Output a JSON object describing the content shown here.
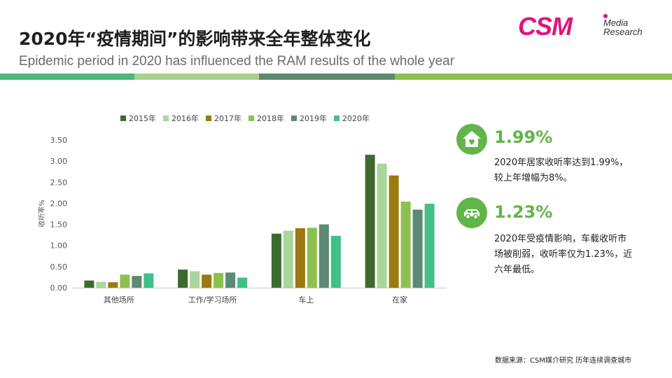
{
  "header": {
    "title": "2020年“疫情期间”的影响带来全年整体变化",
    "subtitle": "Epidemic period in 2020 has influenced the RAM results of the whole year"
  },
  "logo": {
    "main": "CSM",
    "line1": "Media",
    "line2": "Research"
  },
  "stripe_colors": [
    "#4fb77a",
    "#a9d08e",
    "#5d8a6e",
    "#8cc152"
  ],
  "chart_data": {
    "type": "bar",
    "ylabel": "收听率%",
    "ylim": [
      0,
      3.5
    ],
    "yticks": [
      "0.00",
      "0.50",
      "1.00",
      "1.50",
      "2.00",
      "2.50",
      "3.00",
      "3.50"
    ],
    "categories": [
      "其他场所",
      "工作/学习场所",
      "车上",
      "在家"
    ],
    "series": [
      {
        "name": "2015年",
        "color": "#3d6b2e",
        "values": [
          0.17,
          0.43,
          1.28,
          3.15
        ]
      },
      {
        "name": "2016年",
        "color": "#a9d79a",
        "values": [
          0.14,
          0.39,
          1.35,
          2.94
        ]
      },
      {
        "name": "2017年",
        "color": "#9c7a12",
        "values": [
          0.13,
          0.31,
          1.41,
          2.66
        ]
      },
      {
        "name": "2018年",
        "color": "#8cc152",
        "values": [
          0.31,
          0.35,
          1.42,
          2.04
        ]
      },
      {
        "name": "2019年",
        "color": "#5c8a74",
        "values": [
          0.28,
          0.36,
          1.5,
          1.85
        ]
      },
      {
        "name": "2020年",
        "color": "#42c08a",
        "values": [
          0.34,
          0.24,
          1.23,
          1.99
        ]
      }
    ],
    "legend_position": "top",
    "grid": false
  },
  "stats": [
    {
      "value": "1.99%",
      "icon": "home-heart-icon",
      "lines": [
        "2020年居家收听率达到1.99%，",
        "较上年增幅为8%。"
      ]
    },
    {
      "value": "1.23%",
      "icon": "car-icon",
      "lines": [
        "2020年受疫情影响，车载收听市",
        "场被削弱，收听率仅为1.23%，近",
        "六年最低。"
      ]
    }
  ],
  "icon_color": "#62b548",
  "source": "数据来源：CSM媒介研究  历年连续调查城市"
}
